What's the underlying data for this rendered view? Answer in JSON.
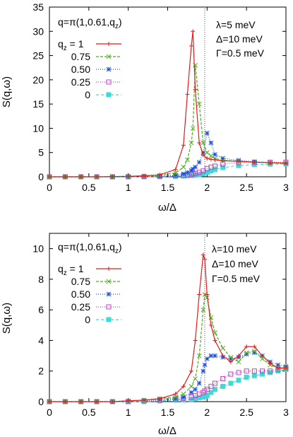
{
  "chart_data": [
    {
      "type": "line",
      "x": [
        0,
        0.2,
        0.4,
        0.6,
        0.8,
        1.0,
        1.2,
        1.4,
        1.6,
        1.7,
        1.75,
        1.8,
        1.82,
        1.85,
        1.9,
        1.95,
        2.0,
        2.05,
        2.1,
        2.2,
        2.4,
        2.6,
        2.8,
        3.0
      ],
      "series": [
        {
          "name": "qz = 1",
          "color": "#e41a1c",
          "marker": "plus",
          "values": [
            0,
            0,
            0,
            0,
            0.05,
            0.1,
            0.2,
            0.4,
            1.5,
            6.5,
            17,
            27,
            30,
            18,
            7,
            4.5,
            3.8,
            3.6,
            3.5,
            3.3,
            3.2,
            3.0,
            2.9,
            2.8
          ]
        },
        {
          "name": "0.75",
          "color": "#4daf1a",
          "marker": "x",
          "values": [
            0,
            0,
            0,
            0,
            0.05,
            0.1,
            0.15,
            0.3,
            0.8,
            2.0,
            3.5,
            7,
            10,
            23,
            15,
            7,
            5,
            4.3,
            3.8,
            3.4,
            3.2,
            3.0,
            2.9,
            2.8
          ]
        },
        {
          "name": "0.50",
          "color": "#1f4fd6",
          "marker": "star",
          "values": [
            0,
            0,
            0,
            0,
            0,
            0.05,
            0.1,
            0.15,
            0.3,
            0.6,
            0.9,
            1.3,
            1.6,
            2.0,
            3.0,
            5.0,
            9.0,
            7.0,
            4.6,
            3.8,
            3.4,
            3.1,
            2.9,
            2.8
          ]
        },
        {
          "name": "0.25",
          "color": "#c043c0",
          "marker": "square",
          "values": [
            0,
            0,
            0,
            0,
            0,
            0,
            0.05,
            0.1,
            0.2,
            0.3,
            0.4,
            0.5,
            0.6,
            0.7,
            0.9,
            1.2,
            1.7,
            2.0,
            2.2,
            2.6,
            2.9,
            3.0,
            3.0,
            3.0
          ]
        },
        {
          "name": "0",
          "color": "#40d8d8",
          "marker": "filled-square",
          "values": [
            0,
            0,
            0,
            0,
            0,
            0,
            0,
            0.05,
            0.1,
            0.15,
            0.2,
            0.25,
            0.3,
            0.35,
            0.45,
            0.6,
            0.9,
            1.2,
            1.5,
            1.9,
            2.3,
            2.5,
            2.6,
            2.7
          ]
        }
      ],
      "xlabel": "ω/Δ",
      "ylabel": "S(q,ω)",
      "xlim": [
        0,
        3
      ],
      "ylim": [
        0,
        35
      ],
      "xticks": [
        "0",
        "0.5",
        "1",
        "1.5",
        "2",
        "2.5",
        "3"
      ],
      "yticks": [
        "0",
        "5",
        "10",
        "15",
        "20",
        "25",
        "30",
        "35"
      ],
      "vline": 1.97,
      "annotations": {
        "q": "q=π(1,0.61,q",
        "q_sub": "z",
        "q_close": ")",
        "lambda": "λ=5 meV",
        "delta": "Δ=10 meV",
        "gamma": "Γ=0.5 meV"
      },
      "legend": "top-left"
    },
    {
      "type": "line",
      "x": [
        0,
        0.2,
        0.4,
        0.6,
        0.8,
        1.0,
        1.2,
        1.4,
        1.6,
        1.7,
        1.8,
        1.85,
        1.9,
        1.95,
        1.97,
        2.0,
        2.05,
        2.1,
        2.2,
        2.3,
        2.4,
        2.5,
        2.6,
        2.7,
        2.8,
        2.9,
        3.0
      ],
      "series": [
        {
          "name": "qz = 1",
          "color": "#e41a1c",
          "marker": "plus",
          "values": [
            0,
            0,
            0,
            0,
            0,
            0.05,
            0.1,
            0.2,
            0.5,
            1.0,
            2.0,
            4.0,
            7.0,
            9.6,
            9.3,
            7.0,
            5.0,
            4.0,
            3.0,
            2.6,
            3.0,
            3.6,
            3.6,
            3.0,
            2.5,
            2.2,
            2.2
          ]
        },
        {
          "name": "0.75",
          "color": "#4daf1a",
          "marker": "x",
          "values": [
            0,
            0,
            0,
            0,
            0,
            0.05,
            0.1,
            0.2,
            0.3,
            0.5,
            1.0,
            1.5,
            3.0,
            6.0,
            7.0,
            6.8,
            5.5,
            4.5,
            3.5,
            2.9,
            2.6,
            3.2,
            3.3,
            2.8,
            2.4,
            2.2,
            2.2
          ]
        },
        {
          "name": "0.50",
          "color": "#1f4fd6",
          "marker": "star",
          "values": [
            0,
            0,
            0,
            0,
            0,
            0.05,
            0.1,
            0.15,
            0.2,
            0.3,
            0.6,
            0.8,
            1.2,
            2.0,
            2.4,
            2.8,
            3.0,
            3.0,
            2.9,
            2.8,
            2.9,
            3.1,
            3.2,
            3.0,
            2.6,
            2.4,
            2.3
          ]
        },
        {
          "name": "0.25",
          "color": "#c043c0",
          "marker": "square",
          "values": [
            0,
            0,
            0,
            0,
            0,
            0,
            0.05,
            0.1,
            0.15,
            0.2,
            0.3,
            0.4,
            0.5,
            0.6,
            0.7,
            0.8,
            1.0,
            1.2,
            1.5,
            1.8,
            1.9,
            2.0,
            2.0,
            2.0,
            2.0,
            2.1,
            2.2
          ]
        },
        {
          "name": "0",
          "color": "#40d8d8",
          "marker": "filled-square",
          "values": [
            0,
            0,
            0,
            0,
            0,
            0,
            0,
            0.05,
            0.1,
            0.12,
            0.15,
            0.2,
            0.25,
            0.3,
            0.35,
            0.4,
            0.6,
            0.8,
            1.0,
            1.2,
            1.4,
            1.6,
            1.7,
            1.8,
            1.9,
            2.0,
            2.1
          ]
        }
      ],
      "xlabel": "ω/Δ",
      "ylabel": "S(q,ω)",
      "xlim": [
        0,
        3
      ],
      "ylim": [
        0,
        11
      ],
      "xticks": [
        "0",
        "0.5",
        "1",
        "1.5",
        "2",
        "2.5",
        "3"
      ],
      "yticks": [
        "0",
        "2",
        "4",
        "6",
        "8",
        "10"
      ],
      "vline": 1.97,
      "annotations": {
        "q": "q=π(1,0.61,q",
        "q_sub": "z",
        "q_close": ")",
        "lambda": "λ=10 meV",
        "delta": "Δ=10 meV",
        "gamma": "Γ=0.5 meV"
      },
      "legend": "top-left"
    }
  ]
}
